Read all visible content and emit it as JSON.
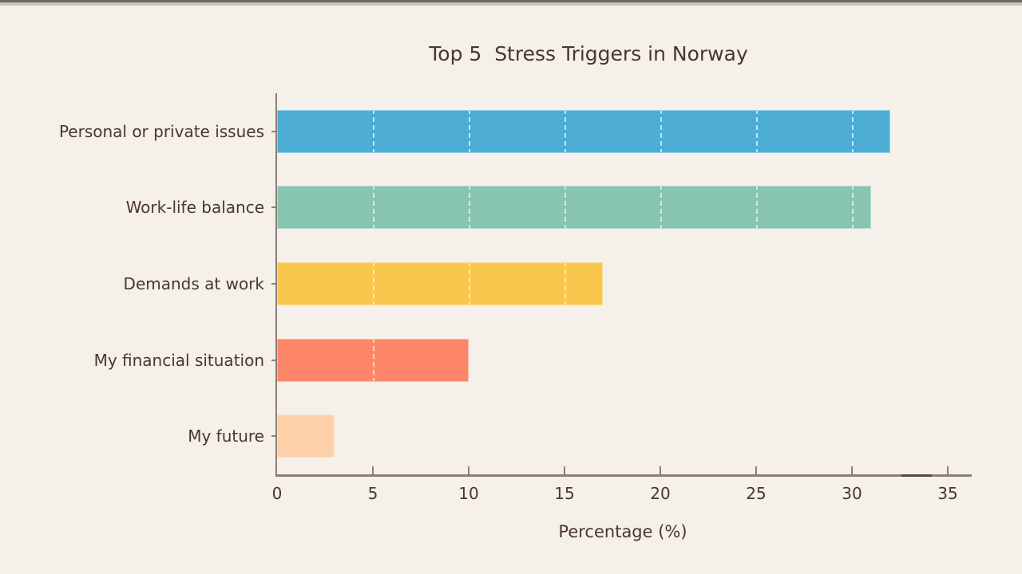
{
  "chart_data": {
    "type": "bar",
    "orientation": "horizontal",
    "title": "Top 5  Stress Triggers in Norway",
    "xlabel": "Percentage (%)",
    "categories": [
      "Personal or private issues",
      "Work-life balance",
      "Demands at work",
      "My financial situation",
      "My future"
    ],
    "values": [
      32,
      31,
      17,
      10,
      3
    ],
    "bar_colors": [
      "#4dadd5",
      "#87c4b1",
      "#f9c64e",
      "#fd8568",
      "#fdd0a9"
    ],
    "xlim": [
      0,
      35
    ],
    "xticks": [
      0,
      5,
      10,
      15,
      20,
      25,
      30,
      35
    ],
    "grid": "white dashed vertical gridlines visible inside bars at 5-unit intervals",
    "legend": "none",
    "background_color": "#f5f0e9",
    "text_color": "#4a372e",
    "axis_color": "#8a7e75"
  },
  "chrome": {
    "top_strip_dark": "#6f6862",
    "top_strip_light": "#cbc5c0"
  }
}
